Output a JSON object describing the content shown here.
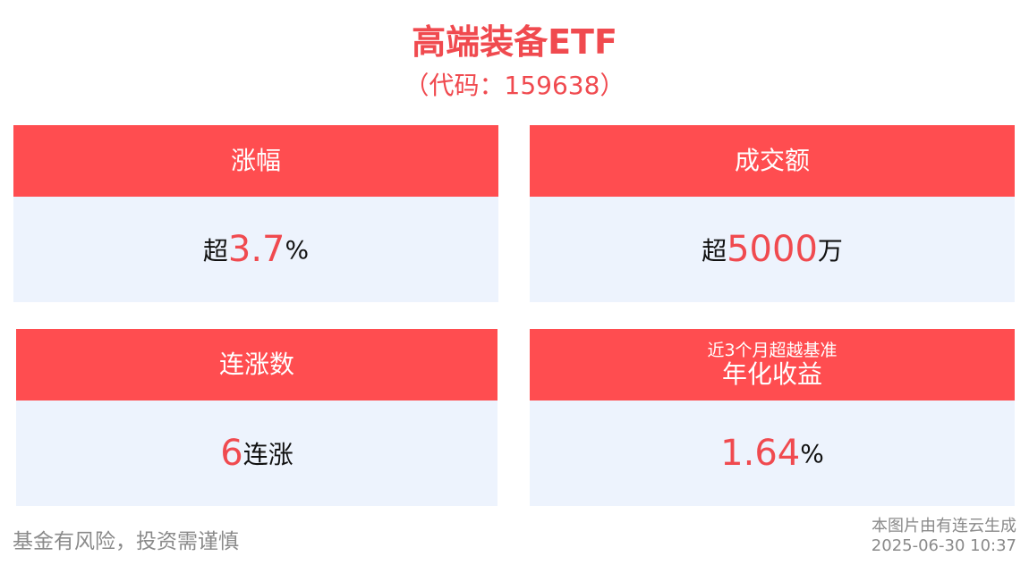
{
  "header": {
    "title": "高端装备ETF",
    "code": "（代码：159638）"
  },
  "cards": [
    {
      "header": "涨幅",
      "prefix": "超",
      "value": "3.7",
      "suffix": "%"
    },
    {
      "header": "成交额",
      "prefix": "超",
      "value": "5000",
      "suffix": "万"
    },
    {
      "header": "连涨数",
      "prefix": "",
      "value": "6",
      "suffix": "连涨"
    },
    {
      "header_sub": "近3个月超越基准",
      "header": "年化收益",
      "prefix": "",
      "value": "1.64",
      "suffix": "%"
    }
  ],
  "footer": {
    "disclaimer": "基金有风险，投资需谨慎",
    "source": "本图片由有连云生成",
    "timestamp": "2025-06-30 10:37"
  },
  "colors": {
    "accent": "#ff4d50",
    "body_bg": "#edf3fd",
    "number": "#f04a4f"
  }
}
